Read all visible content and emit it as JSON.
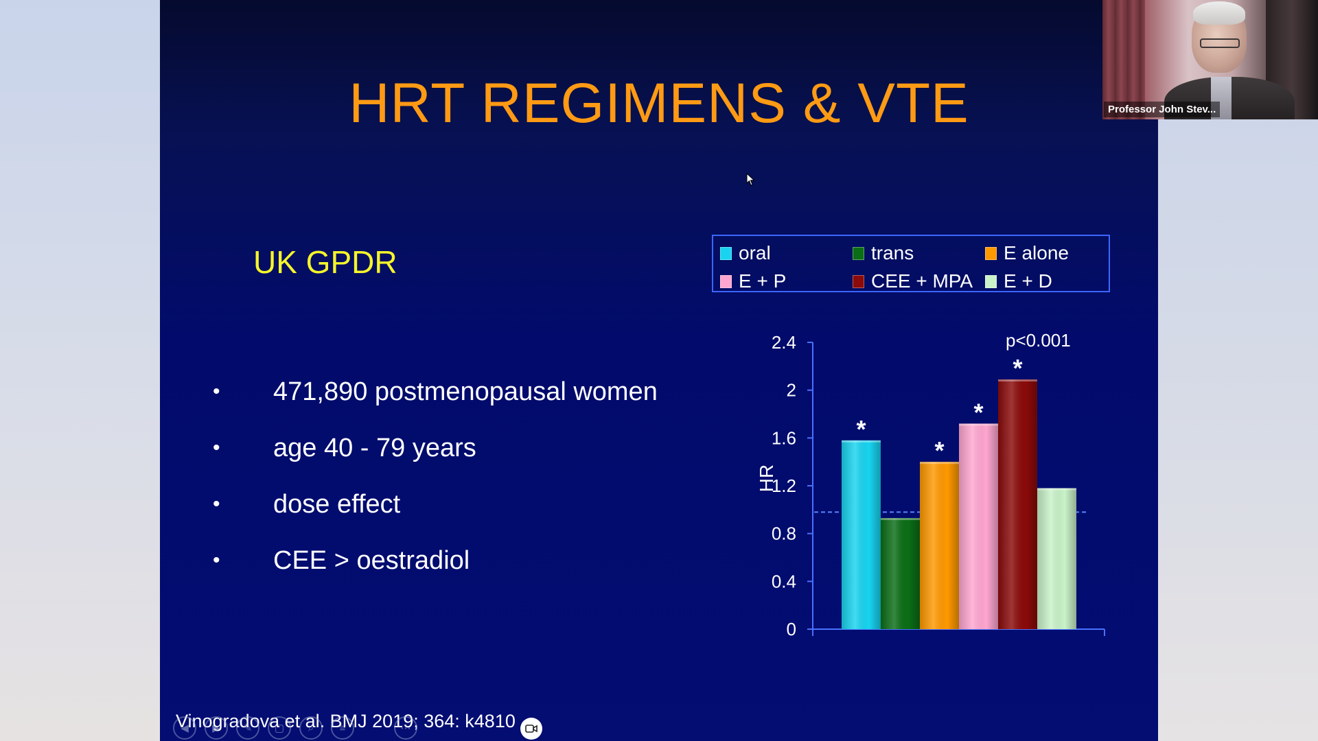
{
  "slide": {
    "title": "HRT REGIMENS & VTE",
    "subtitle": "UK GPDR",
    "bullets": [
      "471,890 postmenopausal women",
      "age 40 - 79 years",
      "dose effect",
      "CEE > oestradiol"
    ],
    "citation": "Vinogradova et al. BMJ 2019; 364: k4810",
    "legend": [
      {
        "label": "oral",
        "color": "#18d4f0"
      },
      {
        "label": "trans",
        "color": "#0b6e16"
      },
      {
        "label": "E alone",
        "color": "#ff9900"
      },
      {
        "label": "E + P",
        "color": "#ffa6d0"
      },
      {
        "label": "CEE + MPA",
        "color": "#8b0a0a"
      },
      {
        "label": "E + D",
        "color": "#c9f2c9"
      }
    ]
  },
  "chart_data": {
    "type": "bar",
    "ylabel": "HR",
    "ylim": [
      0,
      2.4
    ],
    "yticks": [
      "0",
      "0.4",
      "0.8",
      "1.2",
      "1.6",
      "2",
      "2.4"
    ],
    "reference_line": 0.98,
    "annotation": "p<0.001",
    "significance_marker": "*",
    "grid": false,
    "series": [
      {
        "name": "oral",
        "value": 1.58,
        "color": "#18d4f0",
        "significant": true
      },
      {
        "name": "trans",
        "value": 0.93,
        "color": "#0b6e16",
        "significant": false
      },
      {
        "name": "E alone",
        "value": 1.4,
        "color": "#ff9900",
        "significant": true
      },
      {
        "name": "E + P",
        "value": 1.72,
        "color": "#ffa6d0",
        "significant": true
      },
      {
        "name": "CEE + MPA",
        "value": 2.09,
        "color": "#8b0a0a",
        "significant": true
      },
      {
        "name": "E + D",
        "value": 1.18,
        "color": "#c9f2c9",
        "significant": false
      }
    ]
  },
  "video": {
    "participant_name": "Professor John Stev..."
  },
  "controls": [
    "prev-icon",
    "next-icon",
    "pen-icon",
    "pages-icon",
    "zoom-icon",
    "menu-icon",
    "camera-icon",
    "more-icon"
  ]
}
